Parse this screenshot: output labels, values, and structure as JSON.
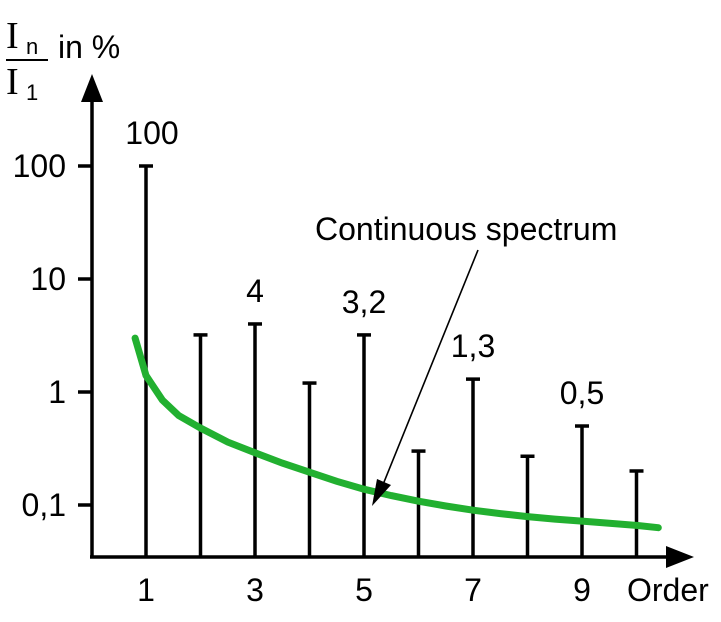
{
  "chart_data": {
    "type": "bar",
    "scale": "log",
    "ylabel": {
      "numerator": "I",
      "numerator_sub": "n",
      "denominator": "I",
      "denominator_sub": "1",
      "unit": "in %"
    },
    "xlabel": "Order",
    "x_ticks": [
      "1",
      "3",
      "5",
      "7",
      "9"
    ],
    "y_ticks": [
      {
        "value": 100,
        "label": "100"
      },
      {
        "value": 10,
        "label": "10"
      },
      {
        "value": 1,
        "label": "1"
      },
      {
        "value": 0.1,
        "label": "0,1"
      }
    ],
    "series": [
      {
        "x": [
          1,
          2,
          3,
          4,
          5,
          6,
          7,
          8,
          9,
          10
        ],
        "values": [
          100,
          3.2,
          4,
          1.2,
          3.2,
          0.3,
          1.3,
          0.27,
          0.5,
          0.2
        ],
        "labels": [
          "100",
          "",
          "4",
          "",
          "3,2",
          "",
          "1,3",
          "",
          "0,5",
          ""
        ]
      }
    ],
    "curve": {
      "x": [
        0.8,
        1.0,
        1.3,
        1.6,
        2.0,
        2.5,
        3.0,
        3.5,
        4.0,
        4.5,
        5.0,
        5.5,
        6.0,
        6.5,
        7.0,
        7.5,
        8.0,
        8.5,
        9.0,
        9.5,
        10.0,
        10.4
      ],
      "values": [
        3.0,
        1.4,
        0.85,
        0.62,
        0.48,
        0.36,
        0.29,
        0.235,
        0.195,
        0.162,
        0.138,
        0.121,
        0.108,
        0.098,
        0.09,
        0.084,
        0.079,
        0.075,
        0.072,
        0.069,
        0.066,
        0.063
      ]
    },
    "annotation": "Continuous spectrum",
    "colors": {
      "curve": "#22b030",
      "axes": "#000000"
    }
  }
}
